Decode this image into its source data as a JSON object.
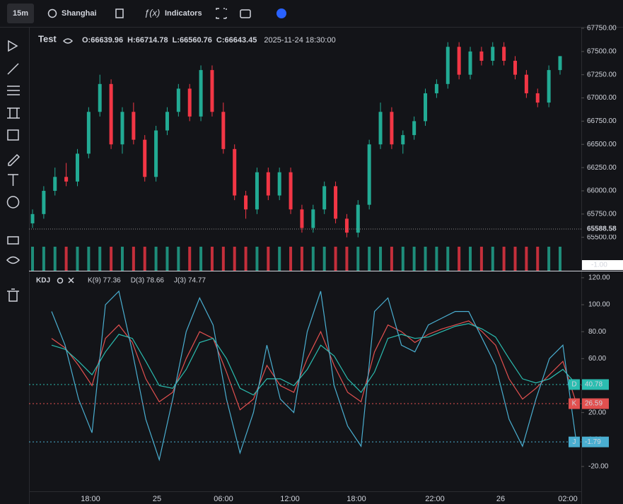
{
  "toolbar": {
    "interval": "15m",
    "timezone": "Shanghai",
    "indicators": "Indicators"
  },
  "chart_data": [
    {
      "type": "candlestick",
      "title": "Test",
      "ohlc_labels": [
        "O:66639.96",
        "H:66714.78",
        "L:66560.76",
        "C:66643.45"
      ],
      "datetime": "2025-11-24 18:30:00",
      "up_color": "#22ab94",
      "down_color": "#f23645",
      "ylim": [
        65140,
        67765
      ],
      "yticks": [
        {
          "value": 67750,
          "label": "67750.00"
        },
        {
          "value": 67500,
          "label": "67500.00"
        },
        {
          "value": 67250,
          "label": "67250.00"
        },
        {
          "value": 67000,
          "label": "67000.00"
        },
        {
          "value": 66750,
          "label": "66750.00"
        },
        {
          "value": 66500,
          "label": "66500.00"
        },
        {
          "value": 66250,
          "label": "66250.00"
        },
        {
          "value": 66000,
          "label": "66000.00"
        },
        {
          "value": 65750,
          "label": "65750.00"
        },
        {
          "value": 65500,
          "label": "65500.00"
        }
      ],
      "last_price": 65588.58,
      "volume_label": "-1.00",
      "candles": [
        [
          65650,
          65800,
          65600,
          65750
        ],
        [
          65750,
          66050,
          65700,
          66000
        ],
        [
          66000,
          66250,
          65950,
          66150
        ],
        [
          66150,
          66300,
          66050,
          66100
        ],
        [
          66100,
          66450,
          66050,
          66400
        ],
        [
          66400,
          66900,
          66350,
          66850
        ],
        [
          66850,
          67250,
          66800,
          67150
        ],
        [
          67150,
          67200,
          66450,
          66500
        ],
        [
          66500,
          66900,
          66400,
          66850
        ],
        [
          66850,
          66950,
          66500,
          66550
        ],
        [
          66550,
          66600,
          66100,
          66150
        ],
        [
          66150,
          66700,
          66100,
          66650
        ],
        [
          66650,
          66900,
          66600,
          66850
        ],
        [
          66850,
          67150,
          66800,
          67100
        ],
        [
          67100,
          67150,
          66750,
          66800
        ],
        [
          66800,
          67350,
          66750,
          67300
        ],
        [
          67300,
          67350,
          66800,
          66850
        ],
        [
          66850,
          66950,
          66400,
          66450
        ],
        [
          66450,
          66500,
          65900,
          65950
        ],
        [
          65950,
          66000,
          65700,
          65800
        ],
        [
          65800,
          66250,
          65750,
          66200
        ],
        [
          66200,
          66250,
          65900,
          65950
        ],
        [
          65950,
          66250,
          65900,
          66200
        ],
        [
          66200,
          66250,
          65750,
          65800
        ],
        [
          65800,
          65850,
          65550,
          65600
        ],
        [
          65600,
          65850,
          65550,
          65800
        ],
        [
          65800,
          66100,
          65750,
          66050
        ],
        [
          66050,
          66100,
          65650,
          65700
        ],
        [
          65700,
          65750,
          65500,
          65550
        ],
        [
          65550,
          65900,
          65500,
          65850
        ],
        [
          65850,
          66550,
          65800,
          66500
        ],
        [
          66500,
          66950,
          66450,
          66850
        ],
        [
          66850,
          66900,
          66450,
          66500
        ],
        [
          66500,
          66650,
          66400,
          66600
        ],
        [
          66600,
          66800,
          66550,
          66750
        ],
        [
          66750,
          67100,
          66700,
          67050
        ],
        [
          67050,
          67200,
          67000,
          67150
        ],
        [
          67150,
          67600,
          67100,
          67550
        ],
        [
          67550,
          67600,
          67200,
          67250
        ],
        [
          67250,
          67550,
          67200,
          67500
        ],
        [
          67500,
          67550,
          67350,
          67400
        ],
        [
          67400,
          67600,
          67350,
          67550
        ],
        [
          67550,
          67600,
          67350,
          67400
        ],
        [
          67400,
          67450,
          67200,
          67250
        ],
        [
          67250,
          67300,
          67000,
          67050
        ],
        [
          67050,
          67100,
          66900,
          66950
        ],
        [
          66950,
          67350,
          66900,
          67300
        ],
        [
          67300,
          67450,
          67250,
          67450
        ]
      ]
    },
    {
      "type": "line",
      "title": "KDJ",
      "ylim": [
        -38.4,
        125.2
      ],
      "yticks": [
        {
          "value": 120,
          "label": "120.00"
        },
        {
          "value": 100,
          "label": "100.00"
        },
        {
          "value": 80,
          "label": "80.00"
        },
        {
          "value": 60,
          "label": "60.00"
        },
        {
          "value": 40,
          "label": "40.00"
        },
        {
          "value": 20,
          "label": "20.00"
        },
        {
          "value": 0,
          "label": "0.00"
        },
        {
          "value": -20,
          "label": "-20.00"
        }
      ],
      "x_labels": [
        "18:00",
        "25",
        "06:00",
        "12:00",
        "18:00",
        "22:00",
        "26",
        "02:00"
      ],
      "series": [
        {
          "name": "K(9) 77.36",
          "short": "K",
          "color": "#e2504f",
          "current": 26.59,
          "values": [
            75,
            68,
            55,
            40,
            75,
            85,
            72,
            45,
            28,
            35,
            60,
            80,
            75,
            50,
            22,
            30,
            55,
            40,
            35,
            60,
            80,
            55,
            35,
            28,
            65,
            85,
            80,
            72,
            78,
            82,
            85,
            88,
            80,
            70,
            45,
            30,
            38,
            48,
            58,
            27
          ]
        },
        {
          "name": "D(3) 78.66",
          "short": "D",
          "color": "#2bbdb0",
          "current": 40.78,
          "values": [
            70,
            67,
            58,
            48,
            65,
            78,
            75,
            58,
            40,
            38,
            52,
            72,
            75,
            60,
            38,
            33,
            45,
            45,
            40,
            52,
            70,
            62,
            45,
            35,
            50,
            75,
            78,
            75,
            76,
            80,
            84,
            86,
            82,
            76,
            60,
            45,
            42,
            45,
            52,
            41
          ]
        },
        {
          "name": "J(3) 74.77",
          "short": "J",
          "color": "#4aaed0",
          "current": -1.79,
          "values": [
            95,
            70,
            30,
            5,
            100,
            110,
            65,
            15,
            -15,
            30,
            80,
            105,
            85,
            30,
            -10,
            20,
            70,
            30,
            20,
            80,
            110,
            40,
            10,
            -5,
            95,
            105,
            70,
            65,
            85,
            90,
            95,
            95,
            75,
            55,
            15,
            -5,
            30,
            60,
            70,
            -2
          ]
        }
      ]
    }
  ]
}
